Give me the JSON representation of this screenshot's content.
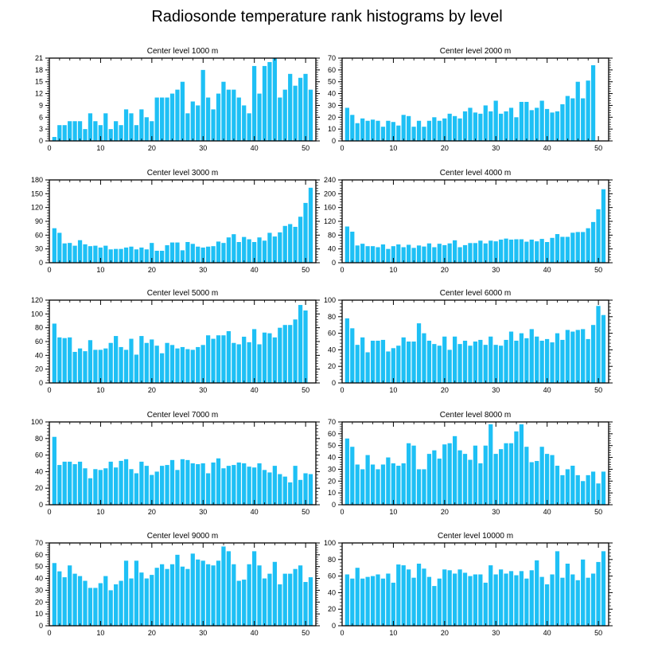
{
  "title": "Radiosonde temperature rank histograms by level",
  "bar_color": "#1ec0f5",
  "chart_data": [
    {
      "type": "bar",
      "title": "Center level 1000 m",
      "xlim": [
        0,
        52
      ],
      "xticks": [
        0,
        10,
        20,
        30,
        40,
        50
      ],
      "ylim": [
        0,
        21
      ],
      "yticks": [
        0,
        3,
        6,
        9,
        12,
        15,
        18,
        21
      ],
      "values": [
        1,
        4,
        4,
        5,
        5,
        5,
        3,
        7,
        5,
        4,
        7,
        3,
        5,
        4,
        8,
        7,
        4,
        8,
        6,
        5,
        11,
        11,
        11,
        12,
        13,
        15,
        7,
        10,
        9,
        18,
        11,
        8,
        12,
        15,
        13,
        13,
        11,
        9,
        7,
        19,
        12,
        19,
        20,
        21,
        11,
        13,
        17,
        14,
        16,
        17,
        13
      ]
    },
    {
      "type": "bar",
      "title": "Center level 2000 m",
      "xlim": [
        0,
        52
      ],
      "xticks": [
        0,
        10,
        20,
        30,
        40,
        50
      ],
      "ylim": [
        0,
        70
      ],
      "yticks": [
        0,
        10,
        20,
        30,
        40,
        50,
        60,
        70
      ],
      "values": [
        28,
        22,
        15,
        19,
        17,
        18,
        17,
        12,
        17,
        16,
        13,
        22,
        21,
        12,
        17,
        12,
        17,
        20,
        17,
        19,
        23,
        21,
        19,
        25,
        28,
        24,
        23,
        30,
        25,
        34,
        23,
        25,
        28,
        20,
        33,
        33,
        26,
        28,
        34,
        27,
        24,
        25,
        31,
        38,
        36,
        50,
        36,
        51,
        64,
        0,
        0
      ]
    },
    {
      "type": "bar",
      "title": "Center level 3000 m",
      "xlim": [
        0,
        52
      ],
      "xticks": [
        0,
        10,
        20,
        30,
        40,
        50
      ],
      "ylim": [
        0,
        180
      ],
      "yticks": [
        0,
        30,
        60,
        90,
        120,
        150,
        180
      ],
      "values": [
        75,
        65,
        42,
        43,
        37,
        49,
        40,
        36,
        37,
        33,
        37,
        29,
        30,
        30,
        33,
        35,
        29,
        33,
        29,
        43,
        26,
        26,
        38,
        44,
        44,
        27,
        45,
        41,
        35,
        33,
        35,
        36,
        46,
        43,
        55,
        62,
        45,
        56,
        51,
        45,
        55,
        48,
        65,
        57,
        66,
        80,
        84,
        78,
        100,
        130,
        163
      ]
    },
    {
      "type": "bar",
      "title": "Center level 4000 m",
      "xlim": [
        0,
        52
      ],
      "xticks": [
        0,
        10,
        20,
        30,
        40,
        50
      ],
      "ylim": [
        0,
        240
      ],
      "yticks": [
        0,
        40,
        80,
        120,
        160,
        200,
        240
      ],
      "values": [
        105,
        90,
        50,
        55,
        48,
        48,
        45,
        53,
        40,
        48,
        53,
        45,
        52,
        43,
        50,
        47,
        56,
        45,
        55,
        51,
        56,
        65,
        45,
        51,
        57,
        57,
        64,
        56,
        64,
        62,
        67,
        70,
        67,
        68,
        68,
        61,
        67,
        62,
        69,
        60,
        72,
        83,
        75,
        75,
        87,
        89,
        89,
        100,
        118,
        155,
        213
      ]
    },
    {
      "type": "bar",
      "title": "Center level 5000 m",
      "xlim": [
        0,
        52
      ],
      "xticks": [
        0,
        10,
        20,
        30,
        40,
        50
      ],
      "ylim": [
        0,
        120
      ],
      "yticks": [
        0,
        20,
        40,
        60,
        80,
        100,
        120
      ],
      "values": [
        86,
        66,
        65,
        66,
        45,
        50,
        46,
        62,
        48,
        48,
        50,
        58,
        68,
        52,
        48,
        64,
        41,
        68,
        58,
        63,
        54,
        43,
        58,
        55,
        50,
        52,
        49,
        48,
        52,
        55,
        69,
        64,
        69,
        69,
        75,
        58,
        56,
        67,
        59,
        78,
        56,
        73,
        72,
        66,
        80,
        84,
        84,
        92,
        113,
        105,
        0
      ]
    },
    {
      "type": "bar",
      "title": "Center level 6000 m",
      "xlim": [
        0,
        52
      ],
      "xticks": [
        0,
        10,
        20,
        30,
        40,
        50
      ],
      "ylim": [
        0,
        100
      ],
      "yticks": [
        0,
        20,
        40,
        60,
        80,
        100
      ],
      "values": [
        78,
        66,
        46,
        55,
        37,
        51,
        51,
        52,
        38,
        42,
        45,
        55,
        50,
        50,
        72,
        60,
        51,
        47,
        45,
        56,
        40,
        56,
        47,
        51,
        45,
        50,
        52,
        46,
        56,
        46,
        45,
        52,
        62,
        51,
        60,
        54,
        65,
        56,
        51,
        53,
        49,
        60,
        52,
        64,
        62,
        64,
        65,
        53,
        70,
        93,
        82
      ]
    },
    {
      "type": "bar",
      "title": "Center level 7000 m",
      "xlim": [
        0,
        52
      ],
      "xticks": [
        0,
        10,
        20,
        30,
        40,
        50
      ],
      "ylim": [
        0,
        100
      ],
      "yticks": [
        0,
        20,
        40,
        60,
        80,
        100
      ],
      "values": [
        82,
        48,
        52,
        52,
        49,
        52,
        44,
        32,
        43,
        42,
        44,
        52,
        45,
        53,
        55,
        43,
        38,
        52,
        47,
        36,
        40,
        47,
        48,
        54,
        42,
        55,
        54,
        50,
        49,
        50,
        38,
        51,
        56,
        44,
        47,
        48,
        51,
        50,
        46,
        45,
        50,
        42,
        39,
        47,
        37,
        34,
        27,
        47,
        30,
        38,
        37
      ]
    },
    {
      "type": "bar",
      "title": "Center level 8000 m",
      "xlim": [
        0,
        52
      ],
      "xticks": [
        0,
        10,
        20,
        30,
        40,
        50
      ],
      "ylim": [
        0,
        70
      ],
      "yticks": [
        0,
        10,
        20,
        30,
        40,
        50,
        60,
        70
      ],
      "values": [
        56,
        49,
        34,
        30,
        42,
        34,
        30,
        34,
        40,
        35,
        33,
        35,
        52,
        50,
        30,
        30,
        43,
        46,
        39,
        51,
        52,
        58,
        46,
        43,
        38,
        50,
        35,
        50,
        68,
        43,
        47,
        52,
        52,
        62,
        68,
        49,
        36,
        37,
        49,
        43,
        42,
        33,
        25,
        30,
        33,
        25,
        20,
        25,
        28,
        18,
        28
      ]
    },
    {
      "type": "bar",
      "title": "Center level 9000 m",
      "xlim": [
        0,
        52
      ],
      "xticks": [
        0,
        10,
        20,
        30,
        40,
        50
      ],
      "ylim": [
        0,
        70
      ],
      "yticks": [
        0,
        10,
        20,
        30,
        40,
        50,
        60,
        70
      ],
      "values": [
        53,
        46,
        41,
        51,
        44,
        42,
        38,
        32,
        32,
        36,
        42,
        30,
        35,
        38,
        55,
        40,
        55,
        45,
        40,
        43,
        49,
        52,
        48,
        52,
        60,
        50,
        48,
        61,
        56,
        55,
        52,
        51,
        55,
        67,
        63,
        52,
        38,
        39,
        52,
        63,
        51,
        40,
        44,
        54,
        35,
        44,
        44,
        48,
        51,
        37,
        41
      ]
    },
    {
      "type": "bar",
      "title": "Center level 10000 m",
      "xlim": [
        0,
        52
      ],
      "xticks": [
        0,
        10,
        20,
        30,
        40,
        50
      ],
      "ylim": [
        0,
        100
      ],
      "yticks": [
        0,
        20,
        40,
        60,
        80,
        100
      ],
      "values": [
        62,
        57,
        70,
        57,
        59,
        60,
        62,
        57,
        63,
        52,
        74,
        73,
        68,
        58,
        75,
        69,
        59,
        48,
        57,
        68,
        67,
        63,
        68,
        64,
        60,
        62,
        62,
        52,
        73,
        62,
        68,
        63,
        66,
        61,
        66,
        57,
        67,
        79,
        59,
        50,
        62,
        90,
        58,
        75,
        62,
        55,
        80,
        58,
        63,
        77,
        90
      ]
    }
  ]
}
